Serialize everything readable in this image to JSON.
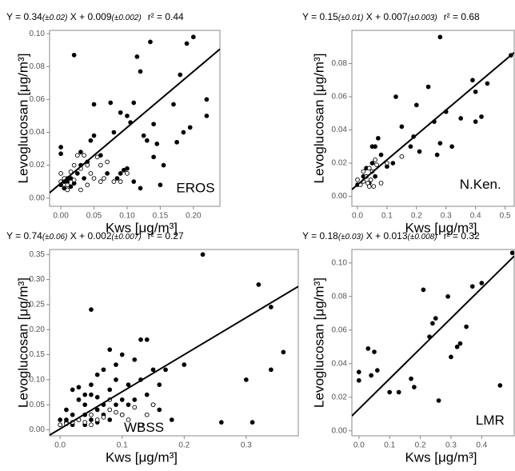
{
  "chart_data": [
    {
      "type": "scatter",
      "equation": [
        "Y = 0.34",
        "(±0.02)",
        " X + 0.009",
        "(±0.002)"
      ],
      "r2": "r² = 0.44",
      "site": "EROS",
      "x_label": "Kws [μg/m³]",
      "y_label": "Levoglucosan [μg/m³]",
      "xlim": [
        -0.017,
        0.24
      ],
      "ylim": [
        -0.005,
        0.102
      ],
      "xticks": [
        {
          "value": 0,
          "label": "0.00"
        },
        0.05,
        {
          "value": 0.1,
          "label": "0.10"
        },
        0.15,
        {
          "value": 0.2,
          "label": "0.20"
        }
      ],
      "yticks": [
        {
          "value": 0,
          "label": "0.00"
        },
        0.02,
        0.04,
        0.06,
        0.08,
        {
          "value": 0.1,
          "label": "0.10"
        }
      ],
      "regression": {
        "slope": 0.34,
        "intercept": 0.009
      },
      "series": [
        {
          "color": "#000000",
          "marker": "filled",
          "x": [
            0.02,
            0.0,
            0.0,
            0.01,
            0.0,
            0.005,
            0.01,
            0.015,
            0.02,
            0.03,
            0.03,
            0.04,
            0.045,
            0.05,
            0.05,
            0.06,
            0.07,
            0.075,
            0.08,
            0.085,
            0.09,
            0.095,
            0.1,
            0.1,
            0.105,
            0.11,
            0.11,
            0.115,
            0.12,
            0.12,
            0.125,
            0.13,
            0.135,
            0.14,
            0.14,
            0.145,
            0.155,
            0.17,
            0.175,
            0.18,
            0.185,
            0.19,
            0.195,
            0.2,
            0.22,
            0.22,
            0.15,
            0.09,
            0.035,
            0.025,
            0.005,
            0.015
          ],
          "values": [
            0.087,
            0.031,
            0.027,
            0.012,
            0.008,
            0.006,
            0.01,
            0.007,
            0.009,
            0.02,
            0.028,
            0.022,
            0.035,
            0.057,
            0.038,
            0.026,
            0.015,
            0.058,
            0.04,
            0.012,
            0.015,
            0.017,
            0.05,
            0.018,
            0.046,
            0.058,
            0.01,
            0.086,
            0.077,
            0.006,
            0.038,
            0.035,
            0.095,
            0.045,
            0.025,
            0.033,
            0.02,
            0.057,
            0.034,
            0.075,
            0.04,
            0.094,
            0.043,
            0.098,
            0.06,
            0.05,
            0.008,
            0.052,
            0.012,
            0.015,
            0.01,
            0.012
          ]
        },
        {
          "color": "#000000",
          "marker": "open",
          "x": [
            0.0,
            0.005,
            0.01,
            0.015,
            0.02,
            0.025,
            0.03,
            0.035,
            0.04,
            0.045,
            0.05,
            0.055,
            0.06,
            0.065,
            0.08,
            0.1,
            0.04,
            0.01,
            0.0,
            0.02,
            0.03,
            0.06,
            0.07,
            0.09
          ],
          "values": [
            0.015,
            0.012,
            0.008,
            0.016,
            0.011,
            0.026,
            0.018,
            0.026,
            0.02,
            0.015,
            0.012,
            0.025,
            0.02,
            0.012,
            0.01,
            0.015,
            0.008,
            0.005,
            0.01,
            0.02,
            0.005,
            0.01,
            0.022,
            0.01
          ]
        }
      ]
    },
    {
      "type": "scatter",
      "equation": [
        "Y = 0.15",
        "(±0.01)",
        " X + 0.007",
        "(±0.003)"
      ],
      "r2": "r² = 0.68",
      "site": "N.Ken.",
      "x_label": "Kws [μg/m³]",
      "y_label": "Levoglucosan [μg/m³]",
      "xlim": [
        -0.019,
        0.531
      ],
      "ylim": [
        -0.006,
        0.1
      ],
      "xticks": [
        {
          "value": 0,
          "label": "0.0"
        },
        0.1,
        0.2,
        0.3,
        0.4,
        0.5
      ],
      "yticks": [
        {
          "value": 0,
          "label": "0.00"
        },
        0.02,
        0.04,
        0.06,
        0.08
      ],
      "regression": {
        "slope": 0.15,
        "intercept": 0.007
      },
      "series": [
        {
          "color": "#000000",
          "marker": "filled",
          "x": [
            0.0,
            0.02,
            0.03,
            0.05,
            0.05,
            0.06,
            0.07,
            0.08,
            0.1,
            0.12,
            0.13,
            0.15,
            0.18,
            0.19,
            0.2,
            0.21,
            0.24,
            0.26,
            0.27,
            0.28,
            0.28,
            0.3,
            0.32,
            0.35,
            0.39,
            0.4,
            0.4,
            0.42,
            0.44,
            0.52,
            0.04,
            0.06
          ],
          "values": [
            0.007,
            0.012,
            0.017,
            0.02,
            0.03,
            0.03,
            0.035,
            0.025,
            0.018,
            0.02,
            0.06,
            0.042,
            0.03,
            0.036,
            0.055,
            0.027,
            0.066,
            0.045,
            0.025,
            0.096,
            0.032,
            0.051,
            0.03,
            0.047,
            0.07,
            0.063,
            0.045,
            0.048,
            0.068,
            0.085,
            0.008,
            0.012
          ]
        },
        {
          "color": "#000000",
          "marker": "open",
          "x": [
            0.0,
            0.01,
            0.02,
            0.03,
            0.035,
            0.04,
            0.045,
            0.05,
            0.055,
            0.06,
            0.065,
            0.08,
            0.1,
            0.15,
            0.02,
            0.04
          ],
          "values": [
            0.01,
            0.007,
            0.015,
            0.012,
            0.008,
            0.017,
            0.01,
            0.015,
            0.006,
            0.022,
            0.019,
            0.008,
            0.02,
            0.024,
            0.009,
            0.006
          ]
        }
      ]
    },
    {
      "type": "scatter",
      "equation": [
        "Y = 0.74",
        "(±0.06)",
        " X + 0.002",
        "(±0.007)"
      ],
      "r2": "r² = 0.27",
      "site": "WBSS",
      "x_label": "Kws [μg/m³]",
      "y_label": "Levoglucosan [μg/m³]",
      "xlim": [
        -0.017,
        0.384
      ],
      "ylim": [
        -0.012,
        0.36
      ],
      "xticks": [
        {
          "value": 0,
          "label": "0.0"
        },
        0.1,
        0.2,
        0.3
      ],
      "yticks": [
        {
          "value": 0,
          "label": "0.00"
        },
        0.05,
        {
          "value": 0.1,
          "label": "0.10"
        },
        0.15,
        {
          "value": 0.2,
          "label": "0.20"
        },
        0.25,
        {
          "value": 0.3,
          "label": "0.30"
        },
        0.35
      ],
      "regression": {
        "slope": 0.74,
        "intercept": 0.002
      },
      "series": [
        {
          "color": "#000000",
          "marker": "filled",
          "x": [
            0.0,
            0.01,
            0.01,
            0.02,
            0.02,
            0.02,
            0.03,
            0.03,
            0.03,
            0.04,
            0.04,
            0.04,
            0.05,
            0.05,
            0.05,
            0.05,
            0.06,
            0.06,
            0.06,
            0.07,
            0.07,
            0.07,
            0.08,
            0.08,
            0.08,
            0.09,
            0.09,
            0.09,
            0.1,
            0.1,
            0.1,
            0.11,
            0.11,
            0.12,
            0.12,
            0.13,
            0.13,
            0.14,
            0.14,
            0.15,
            0.15,
            0.16,
            0.16,
            0.17,
            0.18,
            0.2,
            0.23,
            0.26,
            0.3,
            0.31,
            0.32,
            0.34,
            0.36,
            0.34,
            0.01,
            0.0,
            0.06,
            0.04
          ],
          "values": [
            0.01,
            0.02,
            0.015,
            0.01,
            0.03,
            0.08,
            0.06,
            0.02,
            0.085,
            0.05,
            0.01,
            0.03,
            0.24,
            0.02,
            0.07,
            0.09,
            0.04,
            0.11,
            0.015,
            0.05,
            0.12,
            0.03,
            0.08,
            0.16,
            0.02,
            0.1,
            0.05,
            0.13,
            0.06,
            0.03,
            0.15,
            0.09,
            0.05,
            0.14,
            0.06,
            0.18,
            0.1,
            0.07,
            0.18,
            0.12,
            0.05,
            0.09,
            0.04,
            0.12,
            0.02,
            0.13,
            0.35,
            0.015,
            0.1,
            0.015,
            0.29,
            0.245,
            0.155,
            0.12,
            0.04,
            0.02,
            0.065,
            0.07
          ]
        },
        {
          "color": "#000000",
          "marker": "open",
          "x": [
            0.0,
            0.01,
            0.02,
            0.03,
            0.04,
            0.05,
            0.06,
            0.07,
            0.08,
            0.09,
            0.1,
            0.11,
            0.12,
            0.13,
            0.14,
            0.15,
            0.08,
            0.05
          ],
          "values": [
            0.01,
            0.012,
            0.015,
            0.02,
            0.015,
            0.01,
            0.02,
            0.025,
            0.04,
            0.035,
            0.03,
            0.02,
            0.045,
            0.01,
            0.03,
            0.05,
            0.06,
            0.03
          ]
        }
      ]
    },
    {
      "type": "scatter",
      "equation": [
        "Y = 0.18",
        "(±0.03)",
        " X + 0.013",
        "(±0.008)"
      ],
      "r2": "r² = 0.32",
      "site": "LMR",
      "x_label": "Kws [μg/m³]",
      "y_label": "Levoglucosan [μg/m³]",
      "xlim": [
        -0.023,
        0.506
      ],
      "ylim": [
        -0.003,
        0.108
      ],
      "xticks": [
        {
          "value": 0,
          "label": "0.0"
        },
        0.1,
        0.2,
        0.3,
        0.4
      ],
      "yticks": [
        {
          "value": 0,
          "label": "0.00"
        },
        0.02,
        0.04,
        0.06,
        0.08,
        {
          "value": 0.1,
          "label": "0.10"
        }
      ],
      "regression": {
        "slope": 0.18,
        "intercept": 0.013
      },
      "series": [
        {
          "color": "#000000",
          "marker": "filled",
          "x": [
            0.0,
            0.0,
            0.03,
            0.04,
            0.05,
            0.06,
            0.1,
            0.13,
            0.17,
            0.18,
            0.21,
            0.23,
            0.24,
            0.25,
            0.26,
            0.29,
            0.3,
            0.32,
            0.33,
            0.35,
            0.37,
            0.4,
            0.46,
            0.5
          ],
          "values": [
            0.035,
            0.03,
            0.049,
            0.033,
            0.047,
            0.036,
            0.023,
            0.023,
            0.031,
            0.026,
            0.084,
            0.056,
            0.064,
            0.067,
            0.018,
            0.08,
            0.044,
            0.05,
            0.052,
            0.062,
            0.086,
            0.088,
            0.027,
            0.106
          ]
        }
      ]
    }
  ]
}
